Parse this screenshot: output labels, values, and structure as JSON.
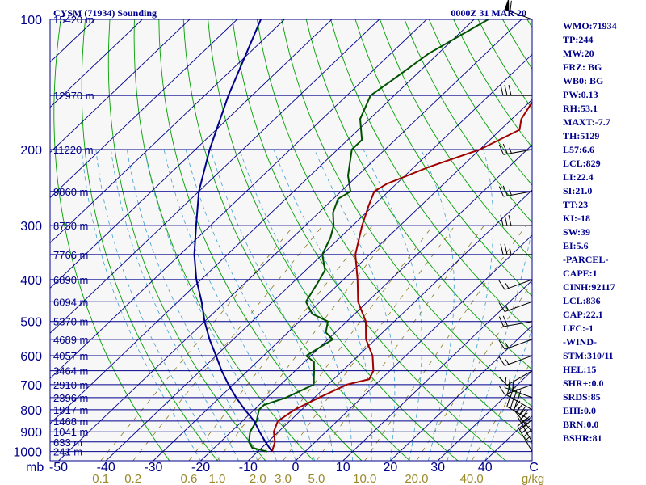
{
  "header": {
    "title": "CYSM (71934) Sounding",
    "datetime": "0000Z 31 MAR 20"
  },
  "chart_data": {
    "type": "skew-t log-p sounding",
    "pressure_axis": {
      "label": "mb",
      "ticks": [
        "100",
        "200",
        "300",
        "400",
        "500",
        "600",
        "700",
        "800",
        "900",
        "1000"
      ],
      "range_hpa": [
        1050,
        100
      ],
      "scale": "log"
    },
    "height_labels": [
      {
        "p": 100,
        "text": "15420 m"
      },
      {
        "p": 150,
        "text": "12970 m"
      },
      {
        "p": 200,
        "text": "11220 m"
      },
      {
        "p": 250,
        "text": "9860 m"
      },
      {
        "p": 300,
        "text": "8750 m"
      },
      {
        "p": 350,
        "text": "7766 m"
      },
      {
        "p": 400,
        "text": "6890 m"
      },
      {
        "p": 450,
        "text": "6094 m"
      },
      {
        "p": 500,
        "text": "5370 m"
      },
      {
        "p": 550,
        "text": "4689 m"
      },
      {
        "p": 600,
        "text": "4057 m"
      },
      {
        "p": 650,
        "text": "3464 m"
      },
      {
        "p": 700,
        "text": "2910 m"
      },
      {
        "p": 750,
        "text": "2396 m"
      },
      {
        "p": 800,
        "text": "1917 m"
      },
      {
        "p": 850,
        "text": "1468 m"
      },
      {
        "p": 900,
        "text": "1041 m"
      },
      {
        "p": 950,
        "text": "633 m"
      },
      {
        "p": 1000,
        "text": "241 m"
      }
    ],
    "temperature_axis": {
      "unit": "C",
      "ticks": [
        "-50",
        "-40",
        "-30",
        "-20",
        "-10",
        "0",
        "10",
        "20",
        "30",
        "40"
      ]
    },
    "mixing_ratio_axis": {
      "unit": "g/kg",
      "ticks": [
        "0.1",
        "0.2",
        "0.6",
        "1.0",
        "2.0",
        "3.0",
        "5.0",
        "10.0",
        "20.0",
        "40.0"
      ]
    },
    "series": [
      {
        "color": "#a00000",
        "points": [
          [
            1000,
            -7
          ],
          [
            950,
            -8.5
          ],
          [
            900,
            -11
          ],
          [
            850,
            -12.5
          ],
          [
            800,
            -11.5
          ],
          [
            750,
            -9
          ],
          [
            700,
            -6
          ],
          [
            680,
            -2.5
          ],
          [
            650,
            -3.5
          ],
          [
            600,
            -7
          ],
          [
            550,
            -12
          ],
          [
            500,
            -16
          ],
          [
            450,
            -22
          ],
          [
            400,
            -27
          ],
          [
            350,
            -33
          ],
          [
            300,
            -38
          ],
          [
            270,
            -41
          ],
          [
            250,
            -43
          ],
          [
            240,
            -42
          ],
          [
            220,
            -37
          ],
          [
            200,
            -30
          ],
          [
            180,
            -26
          ],
          [
            170,
            -28
          ],
          [
            150,
            -30
          ],
          [
            130,
            -27
          ],
          [
            110,
            -24
          ],
          [
            100,
            -22
          ]
        ]
      },
      {
        "color": "#005000",
        "points": [
          [
            1000,
            -8
          ],
          [
            980,
            -12
          ],
          [
            950,
            -14
          ],
          [
            900,
            -16
          ],
          [
            850,
            -17
          ],
          [
            800,
            -19
          ],
          [
            780,
            -19
          ],
          [
            750,
            -16
          ],
          [
            700,
            -13
          ],
          [
            650,
            -16
          ],
          [
            620,
            -18
          ],
          [
            600,
            -21
          ],
          [
            550,
            -19
          ],
          [
            530,
            -22
          ],
          [
            500,
            -24
          ],
          [
            480,
            -29
          ],
          [
            450,
            -33
          ],
          [
            400,
            -35
          ],
          [
            380,
            -36
          ],
          [
            350,
            -40
          ],
          [
            320,
            -42
          ],
          [
            300,
            -44
          ],
          [
            280,
            -47
          ],
          [
            260,
            -49
          ],
          [
            250,
            -48
          ],
          [
            230,
            -52
          ],
          [
            200,
            -57
          ],
          [
            190,
            -57
          ],
          [
            170,
            -62
          ],
          [
            150,
            -65
          ],
          [
            140,
            -64
          ],
          [
            120,
            -62
          ],
          [
            100,
            -57
          ]
        ]
      },
      {
        "color": "#00008b",
        "points": [
          [
            1000,
            -7
          ],
          [
            950,
            -10.5
          ],
          [
            900,
            -14
          ],
          [
            850,
            -17.5
          ],
          [
            800,
            -22
          ],
          [
            750,
            -26.5
          ],
          [
            700,
            -31
          ],
          [
            650,
            -35.5
          ],
          [
            600,
            -40
          ],
          [
            550,
            -45
          ],
          [
            500,
            -50
          ],
          [
            450,
            -55
          ],
          [
            400,
            -61
          ],
          [
            350,
            -67
          ],
          [
            300,
            -73
          ],
          [
            250,
            -80
          ],
          [
            200,
            -87
          ],
          [
            150,
            -95
          ],
          [
            100,
            -105
          ]
        ]
      }
    ],
    "wind_profile": [
      {
        "p": 1000,
        "dir": 330,
        "spd": 45
      },
      {
        "p": 950,
        "dir": 330,
        "spd": 40
      },
      {
        "p": 900,
        "dir": 320,
        "spd": 40
      },
      {
        "p": 850,
        "dir": 300,
        "spd": 35
      },
      {
        "p": 800,
        "dir": 300,
        "spd": 40
      },
      {
        "p": 750,
        "dir": 290,
        "spd": 30
      },
      {
        "p": 700,
        "dir": 250,
        "spd": 10
      },
      {
        "p": 650,
        "dir": 240,
        "spd": 10
      },
      {
        "p": 600,
        "dir": 250,
        "spd": 15
      },
      {
        "p": 550,
        "dir": 250,
        "spd": 15
      },
      {
        "p": 500,
        "dir": 260,
        "spd": 20
      },
      {
        "p": 450,
        "dir": 250,
        "spd": 15
      },
      {
        "p": 400,
        "dir": 250,
        "spd": 15
      },
      {
        "p": 350,
        "dir": 270,
        "spd": 25
      },
      {
        "p": 300,
        "dir": 270,
        "spd": 30
      },
      {
        "p": 250,
        "dir": 260,
        "spd": 25
      },
      {
        "p": 200,
        "dir": 260,
        "spd": 25
      },
      {
        "p": 150,
        "dir": 270,
        "spd": 30
      },
      {
        "p": 100,
        "dir": 290,
        "spd": 60
      }
    ]
  },
  "indices": [
    "WMO:71934",
    "TP:244",
    "MW:20",
    "FRZ: BG",
    "WB0: BG",
    "PW:0.13",
    "RH:53.1",
    "MAXT:-7.7",
    "TH:5129",
    "L57:6.6",
    "LCL:829",
    "LI:22.4",
    "SI:21.0",
    "TT:23",
    "KI:-18",
    "SW:39",
    "EI:5.6",
    "-PARCEL-",
    "CAPE:1",
    "CINH:92117",
    "LCL:836",
    "CAP:22.1",
    "LFC:-1",
    "-WIND-",
    "STM:310/11",
    "HEL:15",
    "SHR+:0.0",
    "SRDS:85",
    "EHI:0.0",
    "BRN:0.0",
    "BSHR:81"
  ],
  "colors": {
    "isobar": "#00008b",
    "isotherm": "#00008b",
    "dry_adiabat": "#00a000",
    "moist_adiabat": "#40a0d0",
    "mixing_ratio": "#8a7a20",
    "temperature": "#a00000",
    "dewpoint": "#005000",
    "parcel": "#00008b",
    "wind_barb": "#000000"
  }
}
